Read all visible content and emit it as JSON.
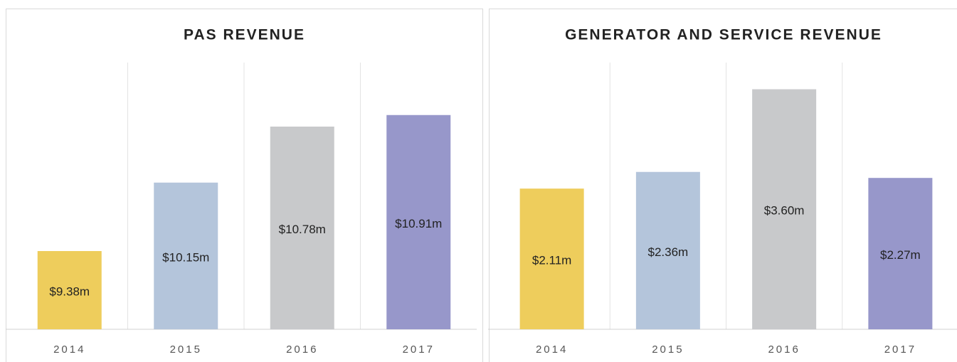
{
  "chart_data": [
    {
      "type": "bar",
      "title": "PAS REVENUE",
      "categories": [
        "2014",
        "2015",
        "2016",
        "2017"
      ],
      "values": [
        9.38,
        10.15,
        10.78,
        10.91
      ],
      "value_labels": [
        "$9.38m",
        "$10.15m",
        "$10.78m",
        "$10.91m"
      ],
      "colors": [
        "#eecd5c",
        "#b4c5db",
        "#c8c9cb",
        "#9797ca"
      ],
      "ylim": [
        8.5,
        11.5
      ]
    },
    {
      "type": "bar",
      "title": "GENERATOR AND SERVICE REVENUE",
      "categories": [
        "2014",
        "2015",
        "2016",
        "2017"
      ],
      "values": [
        2.11,
        2.36,
        3.6,
        2.27
      ],
      "value_labels": [
        "$2.11m",
        "$2.36m",
        "$3.60m",
        "$2.27m"
      ],
      "colors": [
        "#eecd5c",
        "#b4c5db",
        "#c8c9cb",
        "#9797ca"
      ],
      "ylim": [
        0,
        4
      ]
    }
  ]
}
